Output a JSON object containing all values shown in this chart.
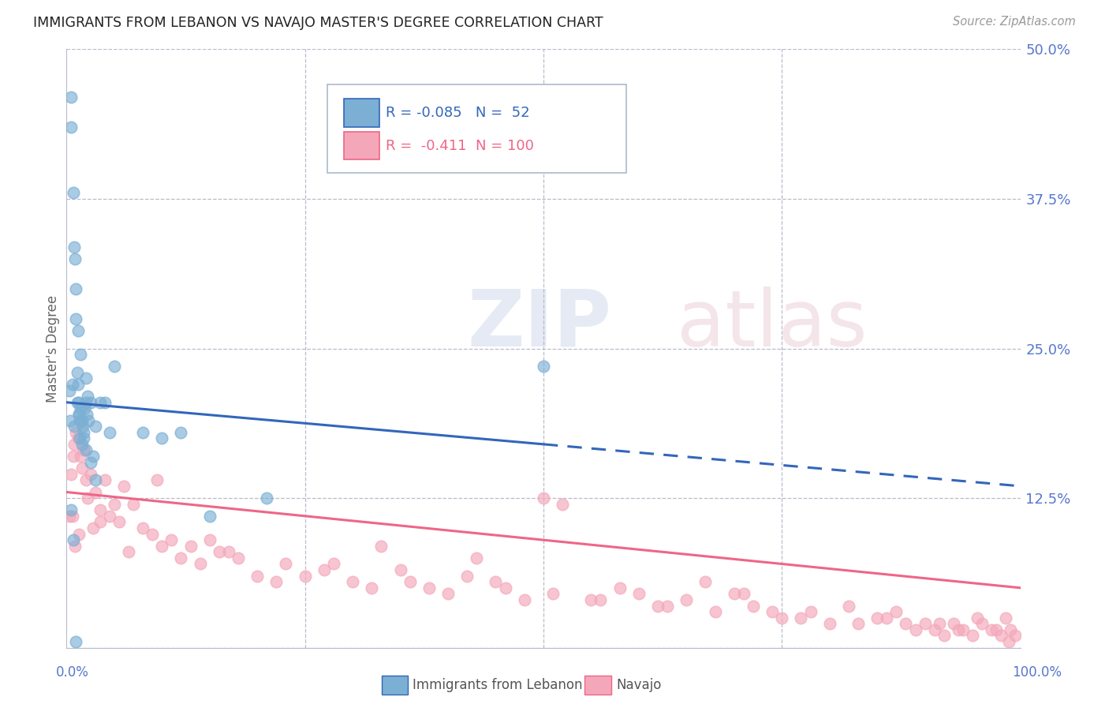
{
  "title": "IMMIGRANTS FROM LEBANON VS NAVAJO MASTER'S DEGREE CORRELATION CHART",
  "source": "Source: ZipAtlas.com",
  "ylabel": "Master's Degree",
  "ytick_values": [
    0.0,
    12.5,
    25.0,
    37.5,
    50.0
  ],
  "ytick_labels": [
    "",
    "12.5%",
    "25.0%",
    "37.5%",
    "50.0%"
  ],
  "xlim": [
    0,
    100
  ],
  "ylim": [
    0,
    50
  ],
  "blue_R": -0.085,
  "blue_N": 52,
  "pink_R": -0.411,
  "pink_N": 100,
  "blue_color": "#7BAFD4",
  "pink_color": "#F4A7B9",
  "blue_line_color": "#3366BB",
  "pink_line_color": "#EE6688",
  "axis_label_color": "#5577CC",
  "title_color": "#222222",
  "blue_line_x0": 0,
  "blue_line_y0": 20.5,
  "blue_line_x1": 50,
  "blue_line_y1": 17.0,
  "blue_dash_x0": 50,
  "blue_dash_y0": 17.0,
  "blue_dash_x1": 100,
  "blue_dash_y1": 13.5,
  "pink_line_x0": 0,
  "pink_line_y0": 13.0,
  "pink_line_x1": 100,
  "pink_line_y1": 5.0,
  "blue_scatter_x": [
    0.5,
    0.5,
    0.7,
    0.8,
    0.9,
    1.0,
    1.0,
    1.0,
    1.1,
    1.2,
    1.2,
    1.3,
    1.3,
    1.4,
    1.4,
    1.5,
    1.5,
    1.6,
    1.7,
    1.8,
    1.9,
    2.0,
    2.0,
    2.1,
    2.2,
    2.3,
    2.5,
    3.0,
    3.5,
    4.5,
    5.0,
    8.0,
    10.0,
    12.0,
    15.0,
    21.0,
    0.3,
    0.4,
    0.6,
    0.8,
    1.1,
    1.3,
    1.6,
    1.8,
    2.0,
    2.5,
    3.0,
    50.0,
    2.8,
    4.0,
    0.5,
    0.7
  ],
  "blue_scatter_y": [
    46.0,
    43.5,
    38.0,
    33.5,
    32.5,
    30.0,
    27.5,
    0.5,
    23.0,
    26.5,
    22.0,
    20.5,
    19.5,
    19.0,
    17.5,
    24.5,
    20.0,
    19.0,
    18.5,
    18.0,
    20.0,
    22.5,
    20.5,
    19.5,
    21.0,
    19.0,
    20.5,
    18.5,
    20.5,
    18.0,
    23.5,
    18.0,
    17.5,
    18.0,
    11.0,
    12.5,
    21.5,
    19.0,
    22.0,
    18.5,
    20.5,
    19.5,
    17.0,
    17.5,
    16.5,
    15.5,
    14.0,
    23.5,
    16.0,
    20.5,
    11.5,
    9.0
  ],
  "pink_scatter_x": [
    0.3,
    0.5,
    0.7,
    0.8,
    1.0,
    1.2,
    1.5,
    1.8,
    2.0,
    2.2,
    2.5,
    3.0,
    3.5,
    4.0,
    4.5,
    5.0,
    5.5,
    6.0,
    7.0,
    8.0,
    9.0,
    10.0,
    11.0,
    12.0,
    13.0,
    14.0,
    15.0,
    16.0,
    18.0,
    20.0,
    22.0,
    25.0,
    28.0,
    30.0,
    32.0,
    35.0,
    38.0,
    40.0,
    42.0,
    45.0,
    48.0,
    50.0,
    52.0,
    55.0,
    58.0,
    60.0,
    62.0,
    65.0,
    68.0,
    70.0,
    72.0,
    75.0,
    78.0,
    80.0,
    82.0,
    85.0,
    87.0,
    88.0,
    89.0,
    90.0,
    91.0,
    92.0,
    93.0,
    94.0,
    95.0,
    96.0,
    97.0,
    98.0,
    98.5,
    99.0,
    99.5,
    0.6,
    0.9,
    1.3,
    2.8,
    6.5,
    9.5,
    23.0,
    27.0,
    33.0,
    36.0,
    43.0,
    46.0,
    51.0,
    56.0,
    63.0,
    67.0,
    71.0,
    74.0,
    77.0,
    83.0,
    86.0,
    91.5,
    93.5,
    95.5,
    97.5,
    98.8,
    1.6,
    3.5,
    17.0
  ],
  "pink_scatter_y": [
    11.0,
    14.5,
    16.0,
    17.0,
    18.0,
    17.5,
    16.0,
    16.5,
    14.0,
    12.5,
    14.5,
    13.0,
    11.5,
    14.0,
    11.0,
    12.0,
    10.5,
    13.5,
    12.0,
    10.0,
    9.5,
    8.5,
    9.0,
    7.5,
    8.5,
    7.0,
    9.0,
    8.0,
    7.5,
    6.0,
    5.5,
    6.0,
    7.0,
    5.5,
    5.0,
    6.5,
    5.0,
    4.5,
    6.0,
    5.5,
    4.0,
    12.5,
    12.0,
    4.0,
    5.0,
    4.5,
    3.5,
    4.0,
    3.0,
    4.5,
    3.5,
    2.5,
    3.0,
    2.0,
    3.5,
    2.5,
    3.0,
    2.0,
    1.5,
    2.0,
    1.5,
    1.0,
    2.0,
    1.5,
    1.0,
    2.0,
    1.5,
    1.0,
    2.5,
    1.5,
    1.0,
    11.0,
    8.5,
    9.5,
    10.0,
    8.0,
    14.0,
    7.0,
    6.5,
    8.5,
    5.5,
    7.5,
    5.0,
    4.5,
    4.0,
    3.5,
    5.5,
    4.5,
    3.0,
    2.5,
    2.0,
    2.5,
    2.0,
    1.5,
    2.5,
    1.5,
    0.5,
    15.0,
    10.5,
    8.0
  ]
}
